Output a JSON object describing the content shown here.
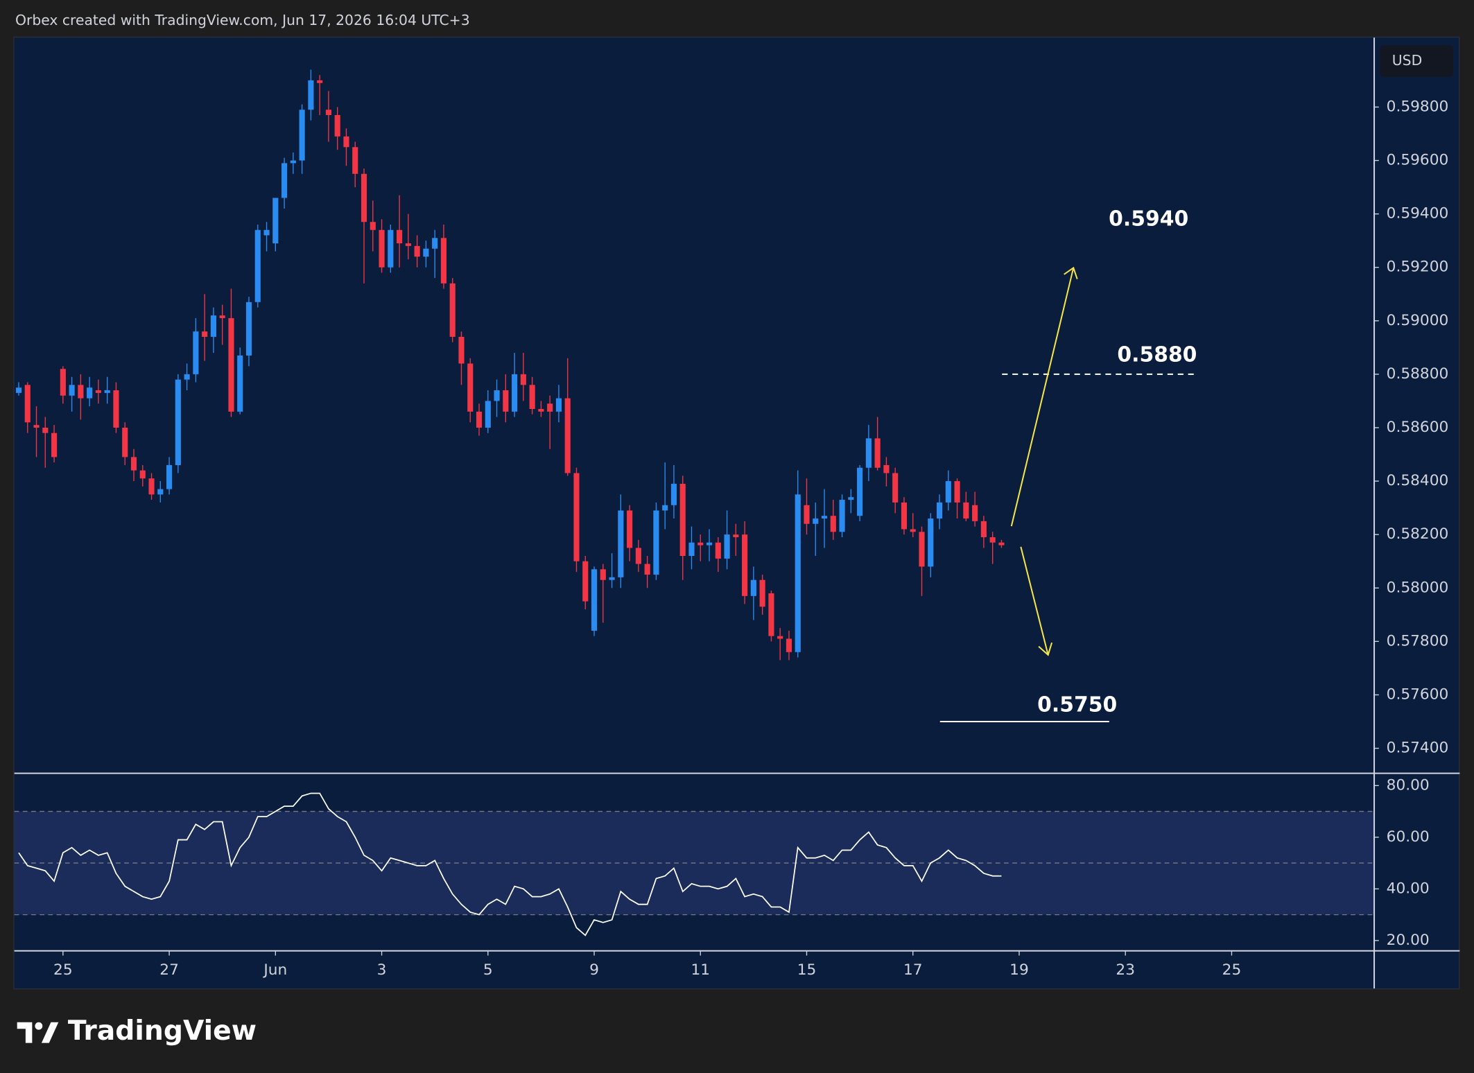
{
  "header": {
    "caption": "Orbex created with TradingView.com, Jun 17, 2026 16:04 UTC+3",
    "currency": "USD"
  },
  "footer": {
    "brand": "TradingView"
  },
  "chart_data": [
    {
      "type": "candlestick",
      "up_color": "#2a8cf0",
      "down_color": "#f23645",
      "xlim": [
        -0.5,
        153.1
      ],
      "ylim": [
        0.5731,
        0.6006
      ],
      "yticks": [
        {
          "value": 0.598,
          "label": "0.59800"
        },
        {
          "value": 0.596,
          "label": "0.59600"
        },
        {
          "value": 0.594,
          "label": "0.59400"
        },
        {
          "value": 0.592,
          "label": "0.59200"
        },
        {
          "value": 0.59,
          "label": "0.59000"
        },
        {
          "value": 0.588,
          "label": "0.58800"
        },
        {
          "value": 0.586,
          "label": "0.58600"
        },
        {
          "value": 0.584,
          "label": "0.58400"
        },
        {
          "value": 0.582,
          "label": "0.58200"
        },
        {
          "value": 0.58,
          "label": "0.58000"
        },
        {
          "value": 0.578,
          "label": "0.57800"
        },
        {
          "value": 0.576,
          "label": "0.57600"
        },
        {
          "value": 0.574,
          "label": "0.57400"
        }
      ],
      "annotations": [
        {
          "value": 0.594,
          "label": "0.5940"
        },
        {
          "value": 0.588,
          "label": "0.5880",
          "line": "dashed"
        },
        {
          "value": 0.575,
          "label": "0.5750",
          "line": "solid"
        }
      ],
      "candles": [
        [
          0.5873,
          0.5877,
          0.5872,
          0.5875
        ],
        [
          0.5876,
          0.5877,
          0.5858,
          0.5862
        ],
        [
          0.5861,
          0.5868,
          0.5849,
          0.586
        ],
        [
          0.586,
          0.5864,
          0.5845,
          0.5858
        ],
        [
          0.5858,
          0.5861,
          0.5847,
          0.5849
        ],
        [
          0.5882,
          0.5883,
          0.5869,
          0.5872
        ],
        [
          0.5872,
          0.5879,
          0.5866,
          0.5876
        ],
        [
          0.5876,
          0.588,
          0.5863,
          0.5871
        ],
        [
          0.5871,
          0.5879,
          0.5868,
          0.5875
        ],
        [
          0.5874,
          0.5878,
          0.5869,
          0.5873
        ],
        [
          0.5873,
          0.5879,
          0.5869,
          0.5874
        ],
        [
          0.5874,
          0.5877,
          0.5858,
          0.586
        ],
        [
          0.586,
          0.5862,
          0.5846,
          0.5849
        ],
        [
          0.5849,
          0.5852,
          0.584,
          0.5844
        ],
        [
          0.5844,
          0.5846,
          0.5838,
          0.5841
        ],
        [
          0.5841,
          0.5843,
          0.5833,
          0.5835
        ],
        [
          0.5835,
          0.584,
          0.5832,
          0.5837
        ],
        [
          0.5837,
          0.5849,
          0.5835,
          0.5846
        ],
        [
          0.5846,
          0.588,
          0.5843,
          0.5878
        ],
        [
          0.5878,
          0.5884,
          0.5874,
          0.588
        ],
        [
          0.588,
          0.5901,
          0.5877,
          0.5896
        ],
        [
          0.5896,
          0.591,
          0.5885,
          0.5894
        ],
        [
          0.5894,
          0.5905,
          0.5888,
          0.5902
        ],
        [
          0.5902,
          0.5906,
          0.5891,
          0.5901
        ],
        [
          0.5901,
          0.5912,
          0.5864,
          0.5866
        ],
        [
          0.5866,
          0.589,
          0.5865,
          0.5887
        ],
        [
          0.5887,
          0.5909,
          0.5883,
          0.5907
        ],
        [
          0.5907,
          0.5936,
          0.5905,
          0.5934
        ],
        [
          0.5932,
          0.5937,
          0.5926,
          0.5934
        ],
        [
          0.5929,
          0.5946,
          0.5926,
          0.5946
        ],
        [
          0.5946,
          0.5961,
          0.5942,
          0.5959
        ],
        [
          0.5959,
          0.5963,
          0.5955,
          0.596
        ],
        [
          0.596,
          0.5981,
          0.5955,
          0.5979
        ],
        [
          0.5979,
          0.5994,
          0.5975,
          0.599
        ],
        [
          0.599,
          0.5992,
          0.5977,
          0.5989
        ],
        [
          0.5979,
          0.5986,
          0.5967,
          0.5977
        ],
        [
          0.5977,
          0.598,
          0.5964,
          0.5969
        ],
        [
          0.5969,
          0.5972,
          0.5958,
          0.5965
        ],
        [
          0.5965,
          0.5967,
          0.595,
          0.5955
        ],
        [
          0.5955,
          0.5957,
          0.5914,
          0.5937
        ],
        [
          0.5937,
          0.5945,
          0.5926,
          0.5934
        ],
        [
          0.5934,
          0.5938,
          0.5918,
          0.592
        ],
        [
          0.592,
          0.5936,
          0.5918,
          0.5934
        ],
        [
          0.5934,
          0.5947,
          0.592,
          0.5929
        ],
        [
          0.5929,
          0.594,
          0.5923,
          0.5928
        ],
        [
          0.5928,
          0.5932,
          0.592,
          0.5924
        ],
        [
          0.5924,
          0.593,
          0.592,
          0.5927
        ],
        [
          0.5927,
          0.5934,
          0.5916,
          0.5931
        ],
        [
          0.5931,
          0.5936,
          0.5912,
          0.5914
        ],
        [
          0.5914,
          0.5916,
          0.5892,
          0.5894
        ],
        [
          0.5894,
          0.5896,
          0.5876,
          0.5884
        ],
        [
          0.5884,
          0.5886,
          0.5862,
          0.5866
        ],
        [
          0.5866,
          0.5869,
          0.5857,
          0.586
        ],
        [
          0.586,
          0.5874,
          0.5858,
          0.587
        ],
        [
          0.587,
          0.5878,
          0.5864,
          0.5874
        ],
        [
          0.5874,
          0.588,
          0.5862,
          0.5866
        ],
        [
          0.5866,
          0.5888,
          0.5864,
          0.588
        ],
        [
          0.588,
          0.5888,
          0.587,
          0.5876
        ],
        [
          0.5876,
          0.5879,
          0.5865,
          0.5867
        ],
        [
          0.5867,
          0.587,
          0.5864,
          0.5866
        ],
        [
          0.5869,
          0.5872,
          0.5852,
          0.5866
        ],
        [
          0.5866,
          0.5876,
          0.5862,
          0.5871
        ],
        [
          0.5871,
          0.5886,
          0.5842,
          0.5843
        ],
        [
          0.5843,
          0.5845,
          0.5806,
          0.581
        ],
        [
          0.581,
          0.5812,
          0.5792,
          0.5795
        ],
        [
          0.5784,
          0.5808,
          0.5782,
          0.5807
        ],
        [
          0.5807,
          0.5809,
          0.5787,
          0.5803
        ],
        [
          0.5803,
          0.5813,
          0.58,
          0.5804
        ],
        [
          0.5804,
          0.5835,
          0.58,
          0.5829
        ],
        [
          0.5829,
          0.5831,
          0.581,
          0.5815
        ],
        [
          0.5815,
          0.5818,
          0.5806,
          0.5809
        ],
        [
          0.5809,
          0.5812,
          0.58,
          0.5805
        ],
        [
          0.5805,
          0.5832,
          0.5803,
          0.5829
        ],
        [
          0.5829,
          0.5847,
          0.5822,
          0.5831
        ],
        [
          0.5831,
          0.5846,
          0.5826,
          0.5839
        ],
        [
          0.5839,
          0.5842,
          0.5803,
          0.5812
        ],
        [
          0.5812,
          0.5823,
          0.5807,
          0.5817
        ],
        [
          0.5817,
          0.582,
          0.581,
          0.5816
        ],
        [
          0.5816,
          0.5822,
          0.581,
          0.5817
        ],
        [
          0.5817,
          0.5819,
          0.5806,
          0.5811
        ],
        [
          0.5811,
          0.5829,
          0.5807,
          0.582
        ],
        [
          0.582,
          0.5824,
          0.5812,
          0.5819
        ],
        [
          0.582,
          0.5825,
          0.5794,
          0.5797
        ],
        [
          0.5797,
          0.5808,
          0.5788,
          0.5803
        ],
        [
          0.5803,
          0.5805,
          0.579,
          0.5793
        ],
        [
          0.5798,
          0.5799,
          0.578,
          0.5782
        ],
        [
          0.5782,
          0.5785,
          0.5773,
          0.5781
        ],
        [
          0.5781,
          0.5784,
          0.5773,
          0.5776
        ],
        [
          0.5776,
          0.5844,
          0.5774,
          0.5835
        ],
        [
          0.5831,
          0.5841,
          0.582,
          0.5824
        ],
        [
          0.5824,
          0.5832,
          0.5812,
          0.5826
        ],
        [
          0.5826,
          0.5837,
          0.5815,
          0.5827
        ],
        [
          0.5827,
          0.5833,
          0.5818,
          0.5821
        ],
        [
          0.5821,
          0.5835,
          0.5819,
          0.5833
        ],
        [
          0.5833,
          0.5837,
          0.5828,
          0.5834
        ],
        [
          0.5827,
          0.5846,
          0.5825,
          0.5845
        ],
        [
          0.5845,
          0.5861,
          0.584,
          0.5856
        ],
        [
          0.5856,
          0.5864,
          0.5844,
          0.5845
        ],
        [
          0.5846,
          0.5849,
          0.5838,
          0.5843
        ],
        [
          0.5843,
          0.5845,
          0.5828,
          0.5832
        ],
        [
          0.5832,
          0.5834,
          0.582,
          0.5822
        ],
        [
          0.5822,
          0.5828,
          0.5819,
          0.5821
        ],
        [
          0.5821,
          0.5823,
          0.5797,
          0.5808
        ],
        [
          0.5808,
          0.5828,
          0.5804,
          0.5826
        ],
        [
          0.5826,
          0.5835,
          0.5822,
          0.5832
        ],
        [
          0.5832,
          0.5844,
          0.5829,
          0.584
        ],
        [
          0.584,
          0.5841,
          0.5826,
          0.5832
        ],
        [
          0.5832,
          0.5836,
          0.5825,
          0.5826
        ],
        [
          0.5831,
          0.5836,
          0.5823,
          0.5825
        ],
        [
          0.5825,
          0.5827,
          0.5815,
          0.5819
        ],
        [
          0.5819,
          0.5821,
          0.5809,
          0.5817
        ],
        [
          0.5817,
          0.5818,
          0.5815,
          0.5816
        ]
      ]
    },
    {
      "type": "line",
      "color": "#ffffff",
      "band_color": "#1b2b5a",
      "xlim": [
        -0.5,
        153.1
      ],
      "ylim": [
        16,
        84.4
      ],
      "yticks": [
        {
          "value": 80,
          "label": "80.00"
        },
        {
          "value": 60,
          "label": "60.00"
        },
        {
          "value": 40,
          "label": "40.00"
        },
        {
          "value": 20,
          "label": "20.00"
        }
      ],
      "levels": [
        30,
        50,
        70
      ],
      "xticks": [
        {
          "value": 5,
          "label": "25"
        },
        {
          "value": 17,
          "label": "27"
        },
        {
          "value": 29,
          "label": "Jun"
        },
        {
          "value": 41,
          "label": "3"
        },
        {
          "value": 53,
          "label": "5"
        },
        {
          "value": 65,
          "label": "9"
        },
        {
          "value": 77,
          "label": "11"
        },
        {
          "value": 89,
          "label": "15"
        },
        {
          "value": 101,
          "label": "17"
        },
        {
          "value": 113,
          "label": "19"
        },
        {
          "value": 125,
          "label": "23"
        },
        {
          "value": 137,
          "label": "25"
        }
      ],
      "values": [
        54,
        49,
        48,
        47,
        43,
        54,
        56,
        53,
        55,
        53,
        54,
        46,
        41,
        39,
        37,
        36,
        37,
        43,
        59,
        59,
        65,
        63,
        66,
        66,
        49,
        56,
        60,
        68,
        68,
        70,
        72,
        72,
        76,
        77,
        77,
        71,
        68,
        66,
        60,
        53,
        51,
        47,
        52,
        51,
        50,
        49,
        49,
        51,
        44,
        38,
        34,
        31,
        30,
        34,
        36,
        34,
        41,
        40,
        37,
        37,
        38,
        40,
        33,
        25,
        22,
        28,
        27,
        28,
        39,
        36,
        34,
        34,
        44,
        45,
        48,
        39,
        42,
        41,
        41,
        40,
        41,
        44,
        37,
        38,
        37,
        33,
        33,
        31,
        56,
        52,
        52,
        53,
        51,
        55,
        55,
        59,
        62,
        57,
        56,
        52,
        49,
        49,
        43,
        50,
        52,
        55,
        52,
        51,
        49,
        46,
        45,
        45
      ]
    }
  ]
}
